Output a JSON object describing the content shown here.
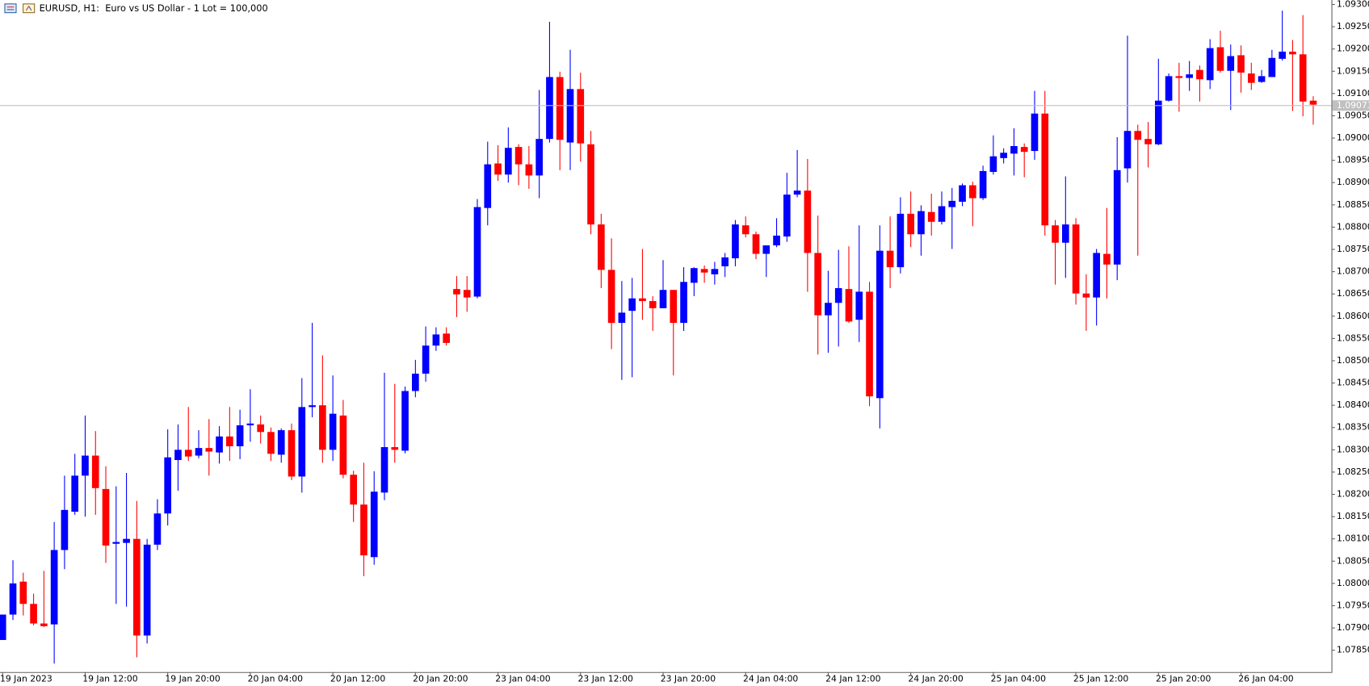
{
  "chart_data": {
    "type": "candlestick",
    "title": "EURUSD, H1:  Euro vs US Dollar - 1 Lot = 100,000",
    "categories": [
      "19 Jan 2023",
      null,
      null,
      null,
      null,
      null,
      null,
      null,
      "19 Jan 12:00",
      null,
      null,
      null,
      null,
      null,
      null,
      null,
      "19 Jan 20:00",
      null,
      null,
      null,
      null,
      null,
      null,
      null,
      "20 Jan 04:00",
      null,
      null,
      null,
      null,
      null,
      null,
      null,
      "20 Jan 12:00",
      null,
      null,
      null,
      null,
      null,
      null,
      null,
      "20 Jan 20:00",
      null,
      null,
      null,
      null,
      null,
      null,
      null,
      "23 Jan 04:00",
      null,
      null,
      null,
      null,
      null,
      null,
      null,
      "23 Jan 12:00",
      null,
      null,
      null,
      null,
      null,
      null,
      null,
      "23 Jan 20:00",
      null,
      null,
      null,
      null,
      null,
      null,
      null,
      "24 Jan 04:00",
      null,
      null,
      null,
      null,
      null,
      null,
      null,
      "24 Jan 12:00",
      null,
      null,
      null,
      null,
      null,
      null,
      null,
      "24 Jan 20:00",
      null,
      null,
      null,
      null,
      null,
      null,
      null,
      "25 Jan 04:00",
      null,
      null,
      null,
      null,
      null,
      null,
      null,
      "25 Jan 12:00",
      null,
      null,
      null,
      null,
      null,
      null,
      null,
      "25 Jan 20:00",
      null,
      null,
      null,
      null,
      null,
      null,
      null,
      "26 Jan 04:00",
      null,
      null,
      null,
      null,
      null,
      null,
      null
    ],
    "open": [
      1.07873,
      1.0793,
      1.08004,
      1.07954,
      1.0791,
      1.07908,
      1.08075,
      1.08161,
      1.08242,
      1.08287,
      1.08212,
      1.08089,
      1.08091,
      1.081,
      1.07883,
      1.08087,
      1.08157,
      1.08277,
      1.083,
      1.08287,
      1.08304,
      1.08294,
      1.0833,
      1.08308,
      1.08355,
      1.08357,
      1.0834,
      1.08289,
      1.08344,
      1.0824,
      1.08396,
      1.084,
      1.083,
      1.08377,
      1.08244,
      1.08177,
      1.08059,
      1.08204,
      1.08306,
      1.08298,
      1.08432,
      1.08471,
      1.08534,
      1.08561,
      1.08661,
      1.08659,
      1.08644,
      1.08843,
      1.08943,
      1.08918,
      1.0898,
      1.08941,
      1.08916,
      1.08998,
      1.09137,
      1.0899,
      1.0911,
      1.08986,
      1.08806,
      1.08704,
      1.08585,
      1.08612,
      1.0864,
      1.08634,
      1.08618,
      1.08659,
      1.08585,
      1.08675,
      1.08706,
      1.08694,
      1.08712,
      1.0873,
      1.08804,
      1.08784,
      1.0874,
      1.08759,
      1.08779,
      1.08873,
      1.08882,
      1.08742,
      1.08602,
      1.0863,
      1.08661,
      1.08592,
      1.08655,
      1.08416,
      1.08747,
      1.0871,
      1.0883,
      1.08784,
      1.08834,
      1.08812,
      1.08845,
      1.08857,
      1.08894,
      1.08865,
      1.08924,
      1.08955,
      1.08965,
      1.0898,
      1.08971,
      1.09055,
      1.08804,
      1.08765,
      1.08806,
      1.08651,
      1.08642,
      1.0874,
      1.08716,
      1.08932,
      1.09016,
      1.08998,
      1.08986,
      1.09084,
      1.09139,
      1.09135,
      1.09153,
      1.0913,
      1.09204,
      1.09151,
      1.09186,
      1.09145,
      1.09126,
      1.09137,
      1.09178,
      1.09194,
      1.09188,
      1.09084
    ],
    "high": [
      1.0793,
      1.08052,
      1.08024,
      1.07977,
      1.08028,
      1.08138,
      1.08242,
      1.08291,
      1.08377,
      1.08342,
      1.08263,
      1.08218,
      1.08248,
      1.08185,
      1.081,
      1.08189,
      1.08346,
      1.08357,
      1.08396,
      1.08344,
      1.08369,
      1.08353,
      1.08396,
      1.0839,
      1.08436,
      1.08377,
      1.0835,
      1.08348,
      1.08359,
      1.08461,
      1.08585,
      1.08512,
      1.08467,
      1.08412,
      1.08253,
      1.08271,
      1.08252,
      1.08473,
      1.08448,
      1.08442,
      1.08502,
      1.08577,
      1.08575,
      1.08575,
      1.0869,
      1.0869,
      1.08863,
      1.08992,
      1.08984,
      1.09024,
      1.08986,
      1.08982,
      1.09108,
      1.09261,
      1.09149,
      1.09198,
      1.09147,
      1.09016,
      1.0883,
      1.08775,
      1.08679,
      1.08686,
      1.08751,
      1.08645,
      1.08726,
      1.08659,
      1.0871,
      1.0871,
      1.08714,
      1.08722,
      1.08742,
      1.08816,
      1.08824,
      1.0879,
      1.08759,
      1.0882,
      1.08922,
      1.08973,
      1.08953,
      1.08826,
      1.08702,
      1.08749,
      1.08757,
      1.08804,
      1.08677,
      1.08804,
      1.08824,
      1.08867,
      1.0888,
      1.08849,
      1.08875,
      1.0888,
      1.08888,
      1.08898,
      1.08902,
      1.08938,
      1.09006,
      1.08977,
      1.09022,
      1.08988,
      1.09106,
      1.09106,
      1.08816,
      1.08914,
      1.0882,
      1.08694,
      1.08751,
      1.08843,
      1.09002,
      1.0923,
      1.0903,
      1.09036,
      1.09178,
      1.09145,
      1.09169,
      1.09173,
      1.09163,
      1.09222,
      1.09241,
      1.0921,
      1.09208,
      1.09169,
      1.09153,
      1.09198,
      1.09286,
      1.0922,
      1.09276,
      1.09094
    ],
    "low": [
      1.07873,
      1.07918,
      1.07928,
      1.07906,
      1.07902,
      1.0782,
      1.08032,
      1.08154,
      1.0815,
      1.08154,
      1.08046,
      1.07954,
      1.07948,
      1.07834,
      1.07865,
      1.08075,
      1.0813,
      1.08208,
      1.08275,
      1.08281,
      1.08242,
      1.08269,
      1.08275,
      1.08279,
      1.08318,
      1.08314,
      1.08275,
      1.08271,
      1.08232,
      1.08204,
      1.08373,
      1.08271,
      1.08275,
      1.08236,
      1.08138,
      1.08016,
      1.08042,
      1.08187,
      1.08271,
      1.08292,
      1.08418,
      1.08453,
      1.08522,
      1.08534,
      1.08598,
      1.0861,
      1.0864,
      1.08804,
      1.08904,
      1.089,
      1.08894,
      1.08886,
      1.08865,
      1.0899,
      1.08928,
      1.08928,
      1.08947,
      1.08784,
      1.08663,
      1.08526,
      1.08457,
      1.08463,
      1.08592,
      1.08567,
      1.08618,
      1.08467,
      1.08567,
      1.08645,
      1.08675,
      1.08671,
      1.08688,
      1.08712,
      1.08777,
      1.08728,
      1.08688,
      1.08755,
      1.08767,
      1.08867,
      1.08655,
      1.08514,
      1.08518,
      1.08532,
      1.08585,
      1.08542,
      1.08398,
      1.08348,
      1.08663,
      1.08696,
      1.08755,
      1.08736,
      1.08781,
      1.08806,
      1.08751,
      1.08847,
      1.08802,
      1.08861,
      1.08918,
      1.08943,
      1.08916,
      1.08912,
      1.08951,
      1.08781,
      1.08671,
      1.08686,
      1.08626,
      1.08567,
      1.08579,
      1.0864,
      1.08681,
      1.089,
      1.08736,
      1.08934,
      1.08984,
      1.09082,
      1.09059,
      1.09106,
      1.09082,
      1.0911,
      1.09147,
      1.09063,
      1.09102,
      1.09108,
      1.09124,
      1.09137,
      1.09174,
      1.09061,
      1.09049,
      1.0903
    ],
    "close": [
      1.0793,
      1.08,
      1.07954,
      1.0791,
      1.07904,
      1.08075,
      1.08165,
      1.08242,
      1.08287,
      1.08214,
      1.08085,
      1.08093,
      1.081,
      1.07883,
      1.08087,
      1.08157,
      1.08283,
      1.083,
      1.08285,
      1.08304,
      1.08296,
      1.0833,
      1.08308,
      1.08355,
      1.08359,
      1.0834,
      1.08291,
      1.08344,
      1.0824,
      1.08396,
      1.084,
      1.083,
      1.08381,
      1.08244,
      1.08177,
      1.08063,
      1.08206,
      1.08306,
      1.083,
      1.08432,
      1.08471,
      1.08534,
      1.08559,
      1.0854,
      1.08649,
      1.08642,
      1.08845,
      1.08941,
      1.08918,
      1.08978,
      1.08941,
      1.08916,
      1.08998,
      1.09137,
      1.08996,
      1.0911,
      1.08988,
      1.08806,
      1.08704,
      1.08585,
      1.08608,
      1.0864,
      1.08634,
      1.08618,
      1.08659,
      1.08585,
      1.08677,
      1.08708,
      1.08698,
      1.08706,
      1.08732,
      1.08806,
      1.08784,
      1.0874,
      1.08759,
      1.08781,
      1.08873,
      1.08882,
      1.08742,
      1.08602,
      1.0863,
      1.08663,
      1.08588,
      1.08655,
      1.0842,
      1.08747,
      1.0871,
      1.0883,
      1.08784,
      1.08836,
      1.08812,
      1.08847,
      1.08859,
      1.08894,
      1.08865,
      1.08926,
      1.08959,
      1.08967,
      1.08982,
      1.08969,
      1.09055,
      1.08804,
      1.08765,
      1.08806,
      1.08651,
      1.08642,
      1.08742,
      1.08716,
      1.08928,
      1.09016,
      1.08996,
      1.08986,
      1.09084,
      1.09139,
      1.09135,
      1.09143,
      1.09132,
      1.09202,
      1.09151,
      1.09184,
      1.09147,
      1.09124,
      1.09139,
      1.0918,
      1.09194,
      1.09188,
      1.09082,
      1.09075
    ],
    "up_color": "#0000ff",
    "down_color": "#ff0000",
    "current_price": 1.09073,
    "ylim": [
      1.07801,
      1.0931
    ],
    "yticks": [
      {
        "value": 1.0785,
        "label": "1.07850"
      },
      {
        "value": 1.079,
        "label": "1.07900"
      },
      {
        "value": 1.0795,
        "label": "1.07950"
      },
      {
        "value": 1.08,
        "label": "1.08000"
      },
      {
        "value": 1.0805,
        "label": "1.08050"
      },
      {
        "value": 1.081,
        "label": "1.08100"
      },
      {
        "value": 1.0815,
        "label": "1.08150"
      },
      {
        "value": 1.082,
        "label": "1.08200"
      },
      {
        "value": 1.0825,
        "label": "1.08250"
      },
      {
        "value": 1.083,
        "label": "1.08300"
      },
      {
        "value": 1.0835,
        "label": "1.08350"
      },
      {
        "value": 1.084,
        "label": "1.08400"
      },
      {
        "value": 1.0845,
        "label": "1.08450"
      },
      {
        "value": 1.085,
        "label": "1.08500"
      },
      {
        "value": 1.0855,
        "label": "1.08550"
      },
      {
        "value": 1.086,
        "label": "1.08600"
      },
      {
        "value": 1.0865,
        "label": "1.08650"
      },
      {
        "value": 1.087,
        "label": "1.08700"
      },
      {
        "value": 1.0875,
        "label": "1.08750"
      },
      {
        "value": 1.088,
        "label": "1.08800"
      },
      {
        "value": 1.0885,
        "label": "1.08850"
      },
      {
        "value": 1.089,
        "label": "1.08900"
      },
      {
        "value": 1.0895,
        "label": "1.08950"
      },
      {
        "value": 1.09,
        "label": "1.09000"
      },
      {
        "value": 1.0905,
        "label": "1.09050"
      },
      {
        "value": 1.091,
        "label": "1.09100"
      },
      {
        "value": 1.0915,
        "label": "1.09150"
      },
      {
        "value": 1.092,
        "label": "1.09200"
      },
      {
        "value": 1.0925,
        "label": "1.09250"
      },
      {
        "value": 1.093,
        "label": "1.09300"
      }
    ]
  }
}
